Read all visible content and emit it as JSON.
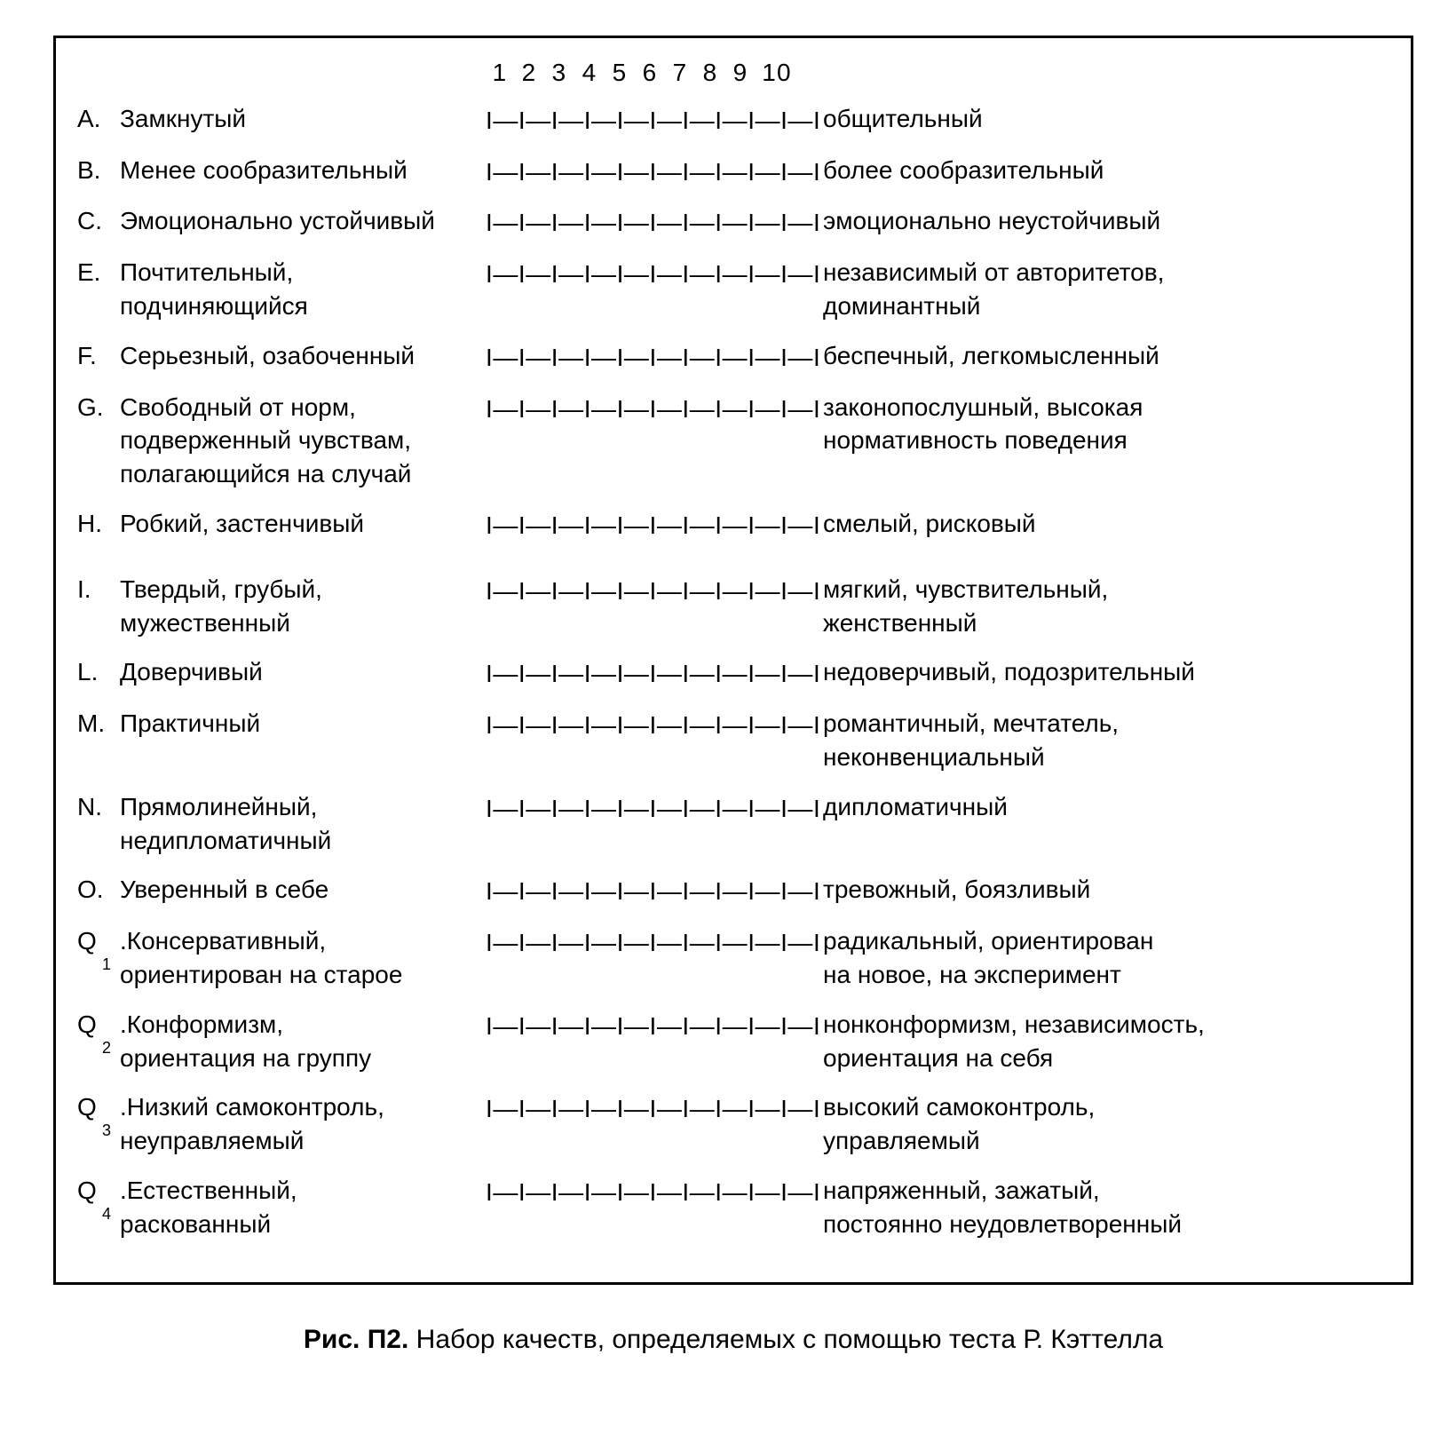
{
  "scale_numbers": [
    "1",
    "2",
    "3",
    "4",
    "5",
    "6",
    "7",
    "8",
    "9",
    "10"
  ],
  "scale_glyph": "I—I—I—I—I—I—I—I—I—I—I",
  "rows": [
    {
      "letter": "A.",
      "sub": "",
      "left": "Замкнутый",
      "right": "общительный",
      "gap": false
    },
    {
      "letter": "B.",
      "sub": "",
      "left": "Менее сообразительный",
      "right": "более сообразительный",
      "gap": false
    },
    {
      "letter": "C.",
      "sub": "",
      "left": "Эмоционально устойчивый",
      "right": "эмоционально неустойчивый",
      "gap": false
    },
    {
      "letter": "E.",
      "sub": "",
      "left": "Почтительный,\nподчиняющийся",
      "right": "независимый от авторитетов,\nдоминантный",
      "gap": false
    },
    {
      "letter": "F.",
      "sub": "",
      "left": "Серьезный, озабоченный",
      "right": "беспечный, легкомысленный",
      "gap": false
    },
    {
      "letter": "G.",
      "sub": "",
      "left": "Свободный от норм,\nподверженный чувствам,\nполагающийся на случай",
      "right": "законопослушный, высокая\nнормативность поведения",
      "gap": false
    },
    {
      "letter": "H.",
      "sub": "",
      "left": "Робкий, застенчивый",
      "right": "смелый, рисковый",
      "gap": true
    },
    {
      "letter": "I.",
      "sub": "",
      "left": "Твердый, грубый,\nмужественный",
      "right": "мягкий, чувствительный,\nженственный",
      "gap": false
    },
    {
      "letter": "L.",
      "sub": "",
      "left": "Доверчивый",
      "right": "недоверчивый, подозрительный",
      "gap": false
    },
    {
      "letter": "M.",
      "sub": "",
      "left": "Практичный",
      "right": "романтичный, мечтатель,\nнеконвенциальный",
      "gap": false
    },
    {
      "letter": "N.",
      "sub": "",
      "left": "Прямолинейный,\nнедипломатичный",
      "right": "дипломатичный",
      "gap": false
    },
    {
      "letter": "O.",
      "sub": "",
      "left": "Уверенный в себе",
      "right": "тревожный, боязливый",
      "gap": false
    },
    {
      "letter": "Q",
      "sub": "1",
      "left": ".Консервативный,\nориентирован на старое",
      "right": "радикальный, ориентирован\nна новое, на эксперимент",
      "gap": false
    },
    {
      "letter": "Q",
      "sub": "2",
      "left": ".Конформизм,\nориентация на группу",
      "right": "нонконформизм, независимость,\nориентация на себя",
      "gap": false
    },
    {
      "letter": "Q",
      "sub": "3",
      "left": ".Низкий самоконтроль,\nнеуправляемый",
      "right": "высокий самоконтроль,\nуправляемый",
      "gap": false
    },
    {
      "letter": "Q",
      "sub": "4",
      "left": ".Естественный,\nраскованный",
      "right": "напряженный, зажатый,\nпостоянно неудовлетворенный",
      "gap": false
    }
  ],
  "caption_label": "Рис. П2.",
  "caption_text": "Набор качеств, определяемых с помощью теста Р. Кэттелла"
}
